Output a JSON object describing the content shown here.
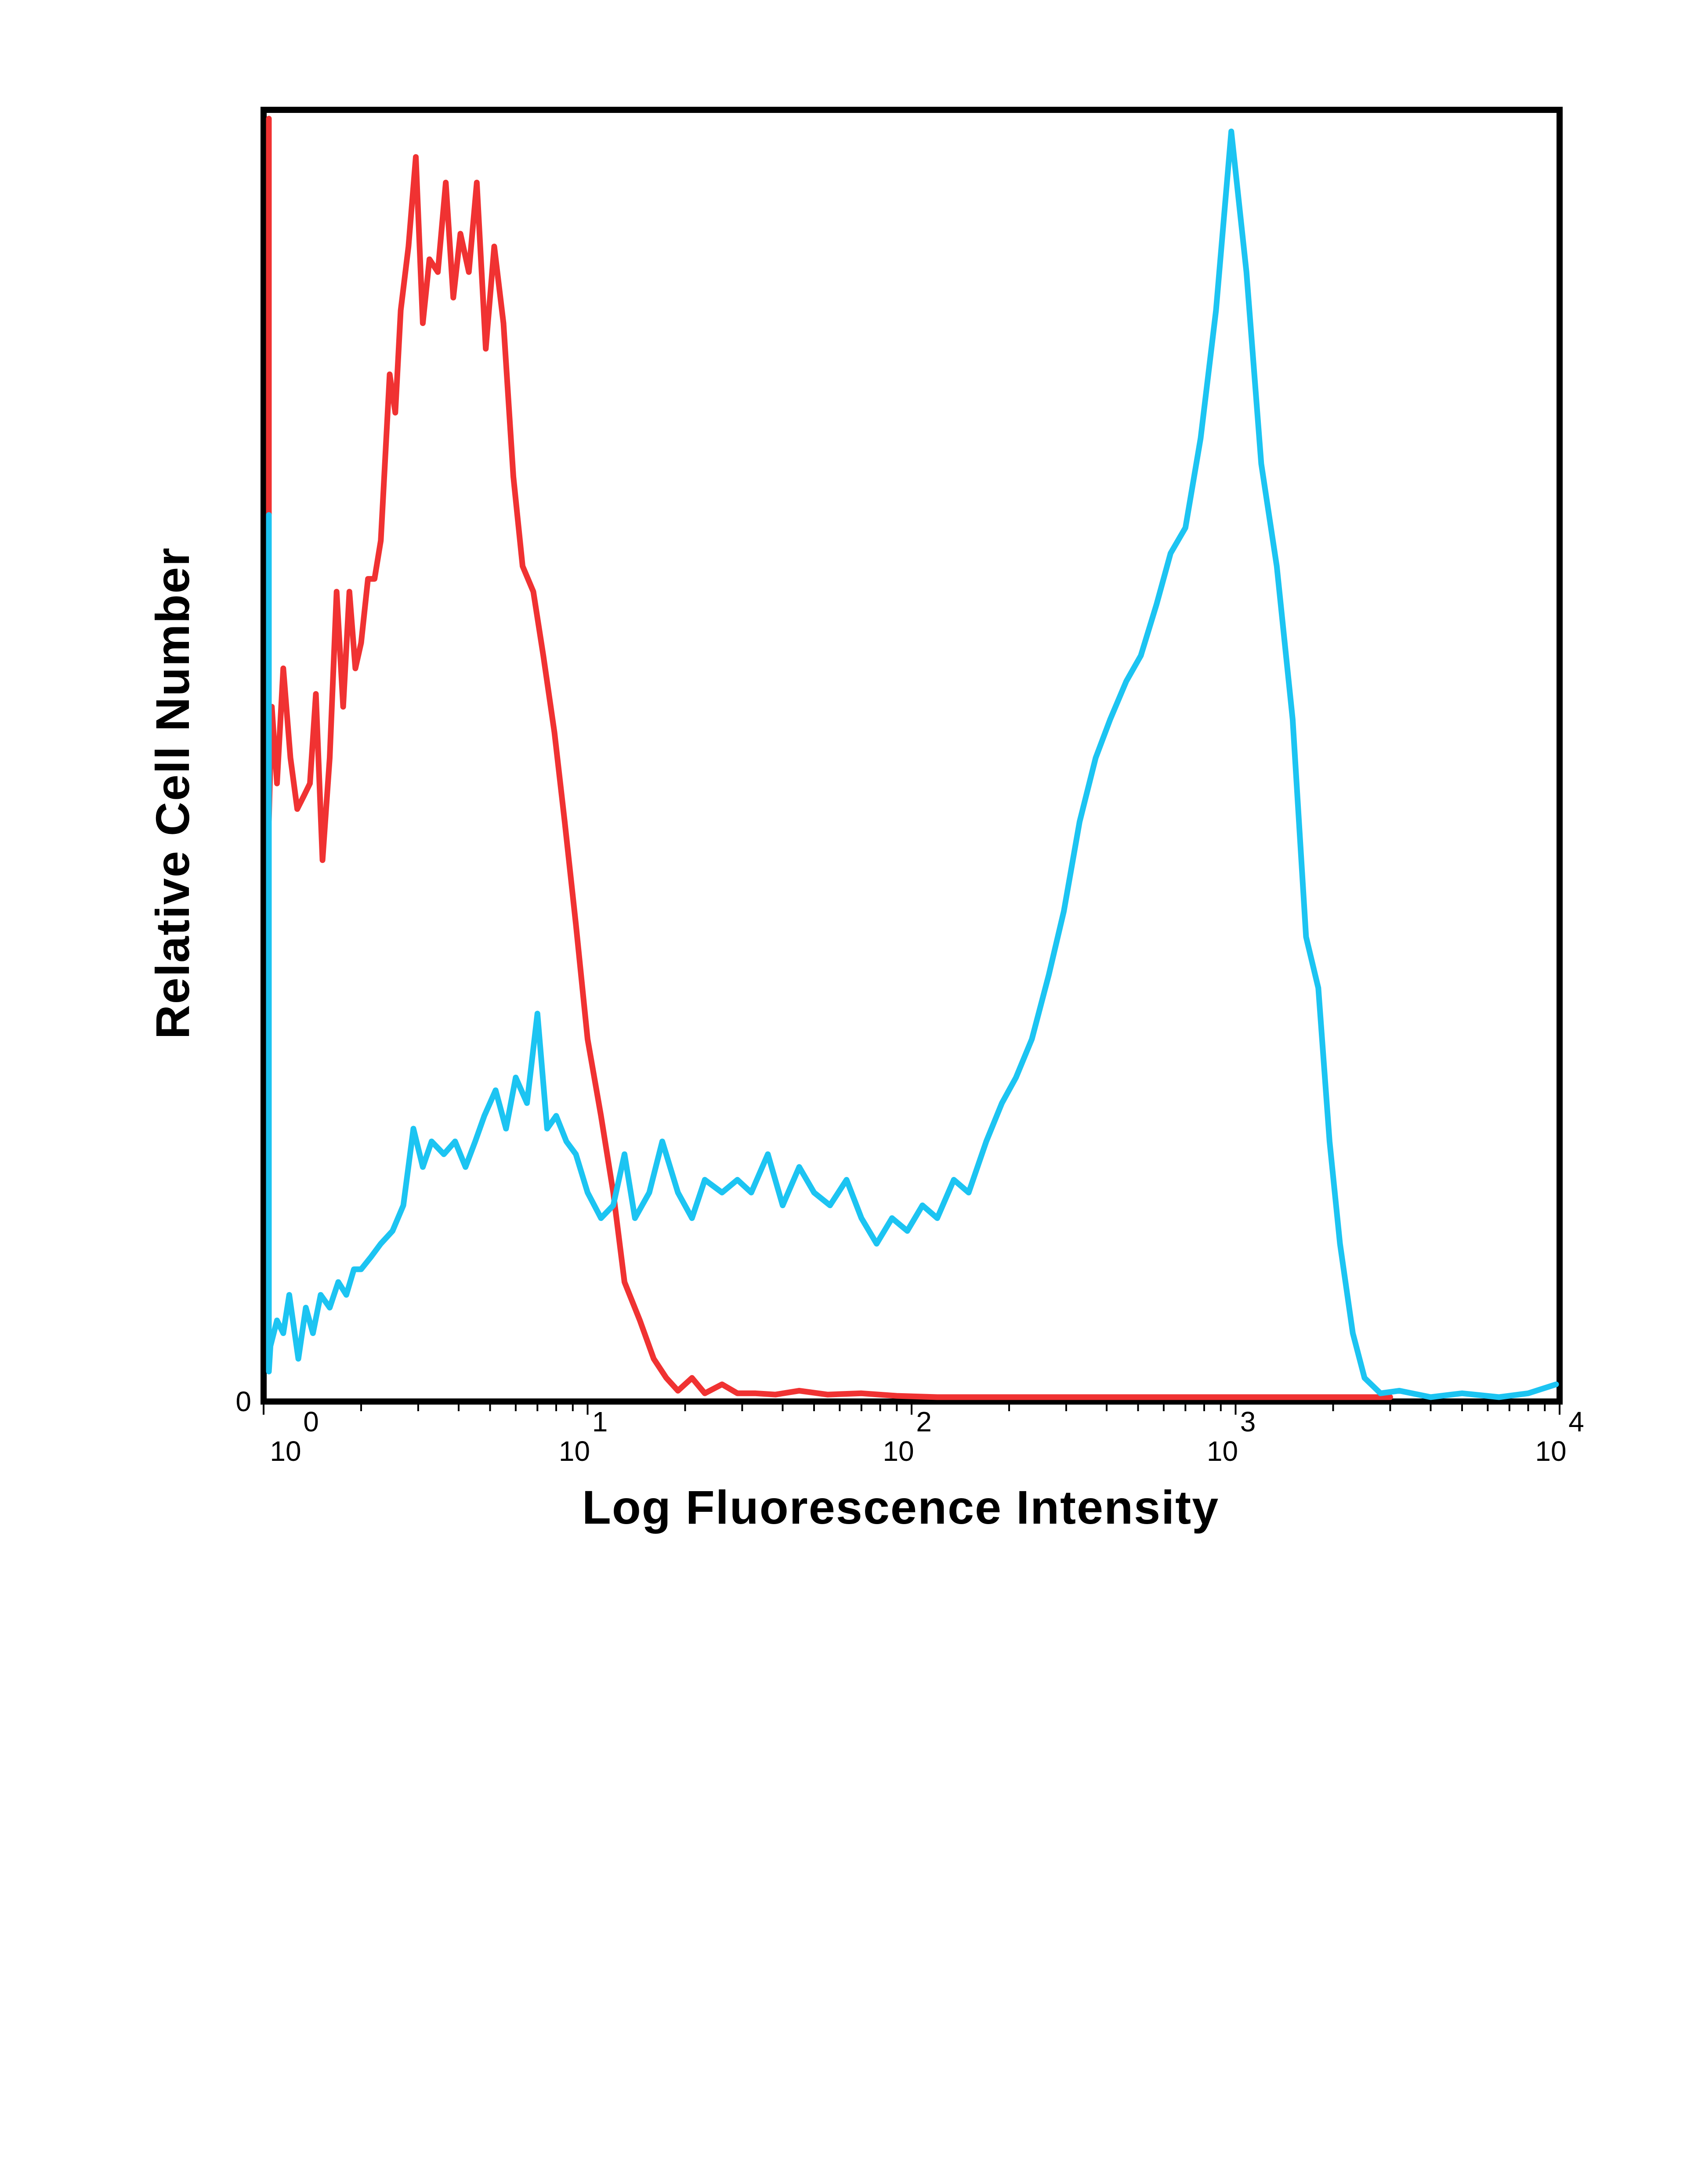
{
  "colors": {
    "red_series": "#f03232",
    "blue_series": "#1cc4f2",
    "axis": "#000000"
  },
  "chart_data": {
    "type": "line",
    "title": "",
    "xlabel": "Log Fluorescence Intensity",
    "ylabel": "Relative Cell Number",
    "x_scale": "log",
    "xlim": [
      1,
      10000
    ],
    "ylim": [
      0,
      100
    ],
    "grid": false,
    "legend": "none",
    "y_ticks": [
      {
        "label": "0",
        "value": 0
      }
    ],
    "x_ticks": [
      {
        "base": "10",
        "exp": "0",
        "value": 1
      },
      {
        "base": "10",
        "exp": "1",
        "value": 10
      },
      {
        "base": "10",
        "exp": "2",
        "value": 100
      },
      {
        "base": "10",
        "exp": "3",
        "value": 1000
      },
      {
        "base": "10",
        "exp": "4",
        "value": 10000
      }
    ],
    "series": [
      {
        "color": "#f03232",
        "points": [
          [
            0.95,
            100
          ],
          [
            1.0,
            45
          ],
          [
            1.06,
            54
          ],
          [
            1.1,
            48
          ],
          [
            1.15,
            57
          ],
          [
            1.21,
            50
          ],
          [
            1.27,
            46
          ],
          [
            1.33,
            47
          ],
          [
            1.39,
            48
          ],
          [
            1.45,
            55
          ],
          [
            1.52,
            42
          ],
          [
            1.6,
            50
          ],
          [
            1.68,
            63
          ],
          [
            1.76,
            54
          ],
          [
            1.84,
            63
          ],
          [
            1.92,
            57
          ],
          [
            2.0,
            59
          ],
          [
            2.1,
            64
          ],
          [
            2.2,
            64
          ],
          [
            2.3,
            67
          ],
          [
            2.45,
            80
          ],
          [
            2.55,
            77
          ],
          [
            2.65,
            85
          ],
          [
            2.8,
            90
          ],
          [
            2.95,
            97
          ],
          [
            3.1,
            84
          ],
          [
            3.25,
            89
          ],
          [
            3.45,
            88
          ],
          [
            3.65,
            95
          ],
          [
            3.85,
            86
          ],
          [
            4.05,
            91
          ],
          [
            4.3,
            88
          ],
          [
            4.55,
            95
          ],
          [
            4.85,
            82
          ],
          [
            5.15,
            90
          ],
          [
            5.5,
            84
          ],
          [
            5.9,
            72
          ],
          [
            6.3,
            65
          ],
          [
            6.8,
            63
          ],
          [
            7.3,
            58
          ],
          [
            7.9,
            52
          ],
          [
            8.5,
            45
          ],
          [
            9.2,
            37
          ],
          [
            10.0,
            28
          ],
          [
            11.0,
            22
          ],
          [
            12.0,
            16
          ],
          [
            13.0,
            9
          ],
          [
            14.5,
            6
          ],
          [
            16.0,
            3
          ],
          [
            17.5,
            1.5
          ],
          [
            19.0,
            0.5
          ],
          [
            21.0,
            1.5
          ],
          [
            23.0,
            0.3
          ],
          [
            26.0,
            1.0
          ],
          [
            29.0,
            0.3
          ],
          [
            33.0,
            0.3
          ],
          [
            38.0,
            0.2
          ],
          [
            45.0,
            0.5
          ],
          [
            55.0,
            0.2
          ],
          [
            70.0,
            0.3
          ],
          [
            90.0,
            0.1
          ],
          [
            120.0,
            0
          ],
          [
            200.0,
            0
          ],
          [
            400.0,
            0
          ],
          [
            800.0,
            0
          ],
          [
            1500.0,
            0
          ],
          [
            3000.0,
            0
          ]
        ]
      },
      {
        "color": "#1cc4f2",
        "points": [
          [
            0.95,
            69
          ],
          [
            1.0,
            2
          ],
          [
            1.05,
            4
          ],
          [
            1.1,
            6
          ],
          [
            1.15,
            5
          ],
          [
            1.2,
            8
          ],
          [
            1.28,
            3
          ],
          [
            1.35,
            7
          ],
          [
            1.42,
            5
          ],
          [
            1.5,
            8
          ],
          [
            1.6,
            7
          ],
          [
            1.7,
            9
          ],
          [
            1.8,
            8
          ],
          [
            1.9,
            10
          ],
          [
            2.0,
            10
          ],
          [
            2.15,
            11
          ],
          [
            2.3,
            12
          ],
          [
            2.5,
            13
          ],
          [
            2.7,
            15
          ],
          [
            2.9,
            21
          ],
          [
            3.1,
            18
          ],
          [
            3.3,
            20
          ],
          [
            3.6,
            19
          ],
          [
            3.9,
            20
          ],
          [
            4.2,
            18
          ],
          [
            4.5,
            20
          ],
          [
            4.8,
            22
          ],
          [
            5.2,
            24
          ],
          [
            5.6,
            21
          ],
          [
            6.0,
            25
          ],
          [
            6.5,
            23
          ],
          [
            7.0,
            30
          ],
          [
            7.5,
            21
          ],
          [
            8.0,
            22
          ],
          [
            8.6,
            20
          ],
          [
            9.2,
            19
          ],
          [
            10.0,
            16
          ],
          [
            11.0,
            14
          ],
          [
            12.0,
            15
          ],
          [
            13.0,
            19
          ],
          [
            14.0,
            14
          ],
          [
            15.5,
            16
          ],
          [
            17.0,
            20
          ],
          [
            19.0,
            16
          ],
          [
            21.0,
            14
          ],
          [
            23.0,
            17
          ],
          [
            26.0,
            16
          ],
          [
            29.0,
            17
          ],
          [
            32.0,
            16
          ],
          [
            36.0,
            19
          ],
          [
            40.0,
            15
          ],
          [
            45.0,
            18
          ],
          [
            50.0,
            16
          ],
          [
            56.0,
            15
          ],
          [
            63.0,
            17
          ],
          [
            70.0,
            14
          ],
          [
            78.0,
            12
          ],
          [
            87.0,
            14
          ],
          [
            97.0,
            13
          ],
          [
            108.0,
            15
          ],
          [
            120.0,
            14
          ],
          [
            135.0,
            17
          ],
          [
            150.0,
            16
          ],
          [
            170.0,
            20
          ],
          [
            190.0,
            23
          ],
          [
            210.0,
            25
          ],
          [
            235.0,
            28
          ],
          [
            265.0,
            33
          ],
          [
            295.0,
            38
          ],
          [
            330.0,
            45
          ],
          [
            370.0,
            50
          ],
          [
            410.0,
            53
          ],
          [
            460.0,
            56
          ],
          [
            510.0,
            58
          ],
          [
            570.0,
            62
          ],
          [
            630.0,
            66
          ],
          [
            700.0,
            68
          ],
          [
            780.0,
            75
          ],
          [
            870.0,
            85
          ],
          [
            970.0,
            99
          ],
          [
            1080.0,
            88
          ],
          [
            1200.0,
            73
          ],
          [
            1340.0,
            65
          ],
          [
            1500.0,
            53
          ],
          [
            1650.0,
            36
          ],
          [
            1800.0,
            32
          ],
          [
            1950.0,
            20
          ],
          [
            2100.0,
            12
          ],
          [
            2300.0,
            5
          ],
          [
            2500.0,
            1.5
          ],
          [
            2800.0,
            0.3
          ],
          [
            3200.0,
            0.5
          ],
          [
            4000.0,
            0
          ],
          [
            5000.0,
            0.3
          ],
          [
            6500.0,
            0
          ],
          [
            8000.0,
            0.3
          ],
          [
            10000.0,
            1
          ]
        ]
      }
    ]
  }
}
